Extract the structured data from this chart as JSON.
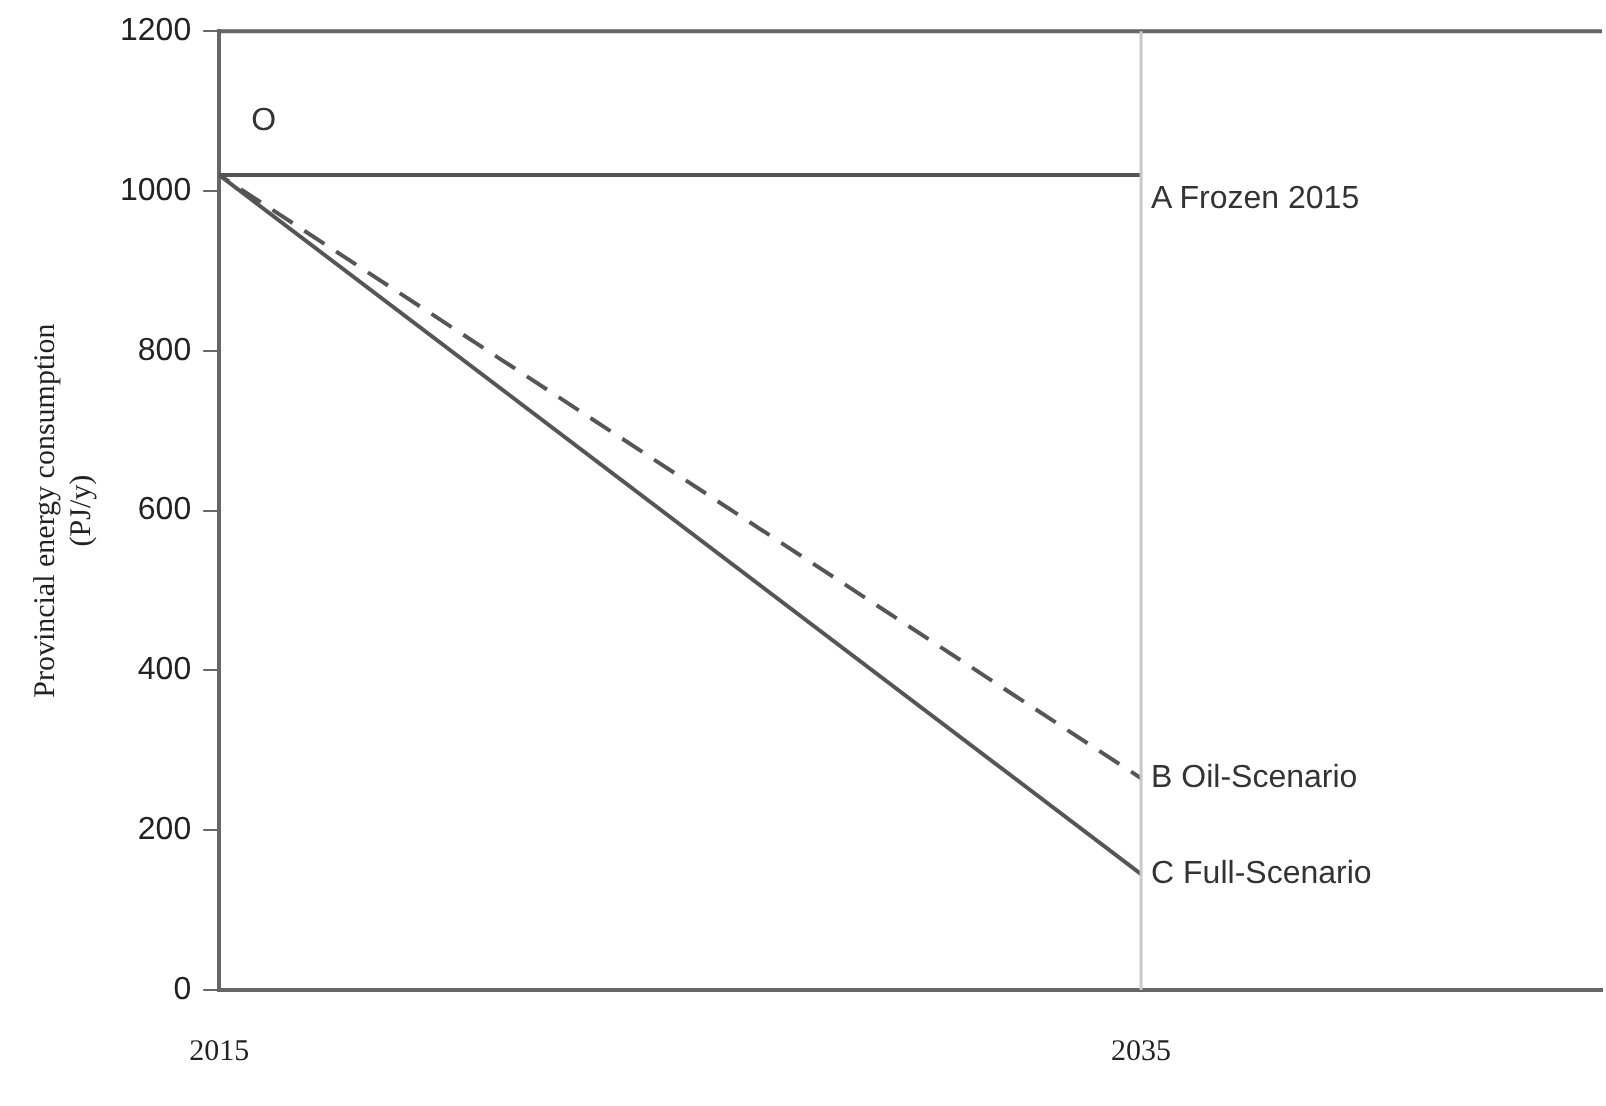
{
  "chart_data": {
    "type": "line",
    "ylabel": "Provincial energy consumption\n(PJ/y)",
    "x": [
      2015,
      2035
    ],
    "xlim": [
      2015,
      2045
    ],
    "xticks": [
      2015,
      2035
    ],
    "ylim": [
      0,
      1200
    ],
    "yticks": [
      0,
      200,
      400,
      600,
      800,
      1000,
      1200
    ],
    "grid": false,
    "legend": false,
    "marker": "none",
    "series": [
      {
        "name": "A Frozen 2015",
        "color": "#555555",
        "values": [
          1020,
          1020
        ],
        "line_style": "solid"
      },
      {
        "name": "B Oil-Scenario",
        "color": "#555555",
        "values": [
          1020,
          265
        ],
        "line_style": "dashed"
      },
      {
        "name": "C Full-Scenario",
        "color": "#555555",
        "values": [
          1020,
          145
        ],
        "line_style": "solid"
      }
    ],
    "ref_lines": [
      {
        "axis": "x",
        "value": 2035,
        "color": "#c8c8c8"
      }
    ],
    "annotations": [
      "O"
    ]
  }
}
